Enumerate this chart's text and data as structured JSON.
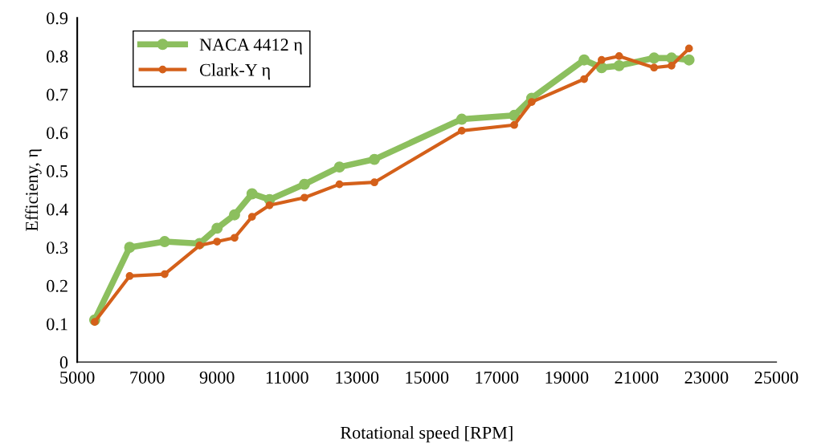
{
  "chart_data": {
    "type": "line",
    "xlabel": "Rotational speed [RPM]",
    "ylabel": "Efficieny, η",
    "x": [
      5500,
      6500,
      7500,
      8500,
      9000,
      9500,
      10000,
      10500,
      11500,
      12500,
      13500,
      16000,
      17500,
      18000,
      19500,
      20000,
      20500,
      21500,
      22000,
      22500
    ],
    "series": [
      {
        "name": "NACA 4412 η",
        "color": "#8cbf5e",
        "values": [
          0.11,
          0.3,
          0.315,
          0.31,
          0.35,
          0.385,
          0.44,
          0.425,
          0.465,
          0.51,
          0.53,
          0.635,
          0.645,
          0.69,
          0.79,
          0.77,
          0.775,
          0.795,
          0.795,
          0.79
        ]
      },
      {
        "name": "Clark-Y η",
        "color": "#d4601a",
        "values": [
          0.105,
          0.225,
          0.23,
          0.305,
          0.315,
          0.325,
          0.38,
          0.41,
          0.43,
          0.465,
          0.47,
          0.605,
          0.62,
          0.68,
          0.74,
          0.79,
          0.8,
          0.77,
          0.775,
          0.82
        ]
      }
    ],
    "xlim": [
      5000,
      25000
    ],
    "xticks": [
      5000,
      7000,
      9000,
      11000,
      13000,
      15000,
      17000,
      19000,
      21000,
      23000,
      25000
    ],
    "ylim": [
      0,
      0.9
    ],
    "yticks": [
      {
        "value": 0,
        "label": "0"
      },
      0.1,
      0.2,
      0.3,
      0.4,
      0.5,
      0.6,
      0.7,
      0.8,
      0.9
    ],
    "grid": false,
    "legend": "top left",
    "marker": "circle",
    "line_style": "solid"
  }
}
